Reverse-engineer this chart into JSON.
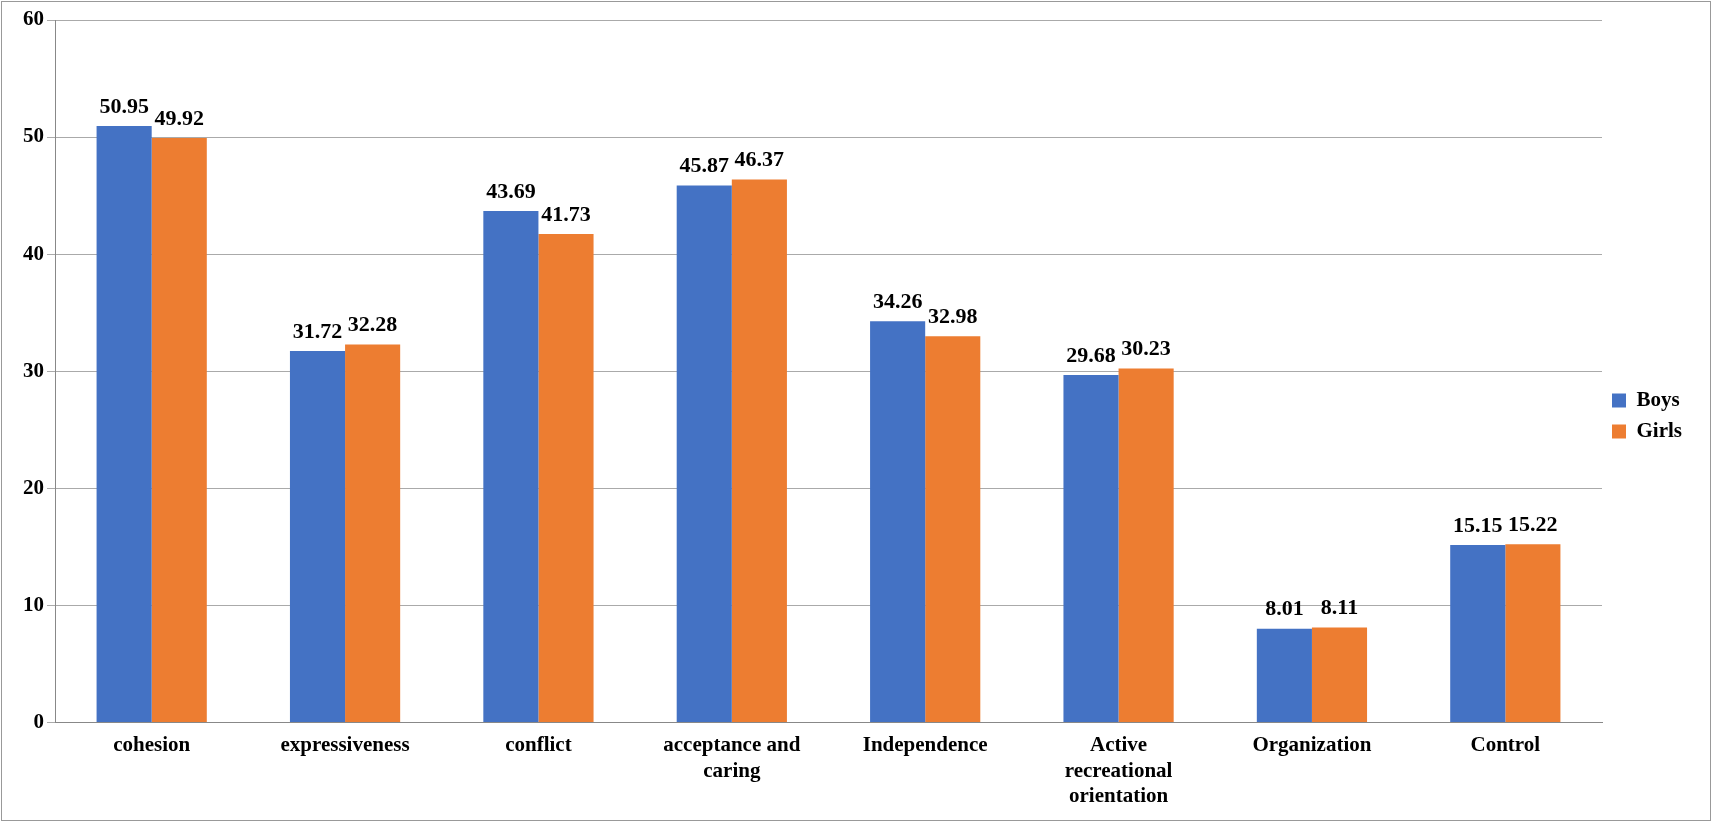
{
  "chart_data": {
    "type": "bar",
    "categories": [
      "cohesion",
      "expressiveness",
      "conflict",
      "acceptance and caring",
      "Independence",
      "Active recreational orientation",
      "Organization",
      "Control"
    ],
    "series": [
      {
        "name": "Boys",
        "color": "#4472c4",
        "values": [
          50.95,
          31.72,
          43.69,
          45.87,
          34.26,
          29.68,
          8.01,
          15.15
        ]
      },
      {
        "name": "Girls",
        "color": "#ed7d31",
        "values": [
          49.92,
          32.28,
          41.73,
          46.37,
          32.98,
          30.23,
          8.11,
          15.22
        ]
      }
    ],
    "ylim": [
      0,
      60
    ],
    "yticks": [
      0,
      10,
      20,
      30,
      40,
      50,
      60
    ],
    "grid": "y",
    "legend": "right",
    "data_labels": true
  }
}
